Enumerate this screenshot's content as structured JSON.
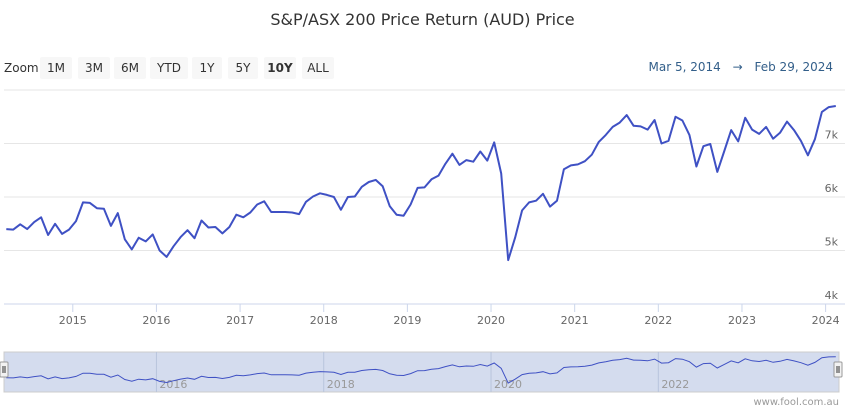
{
  "title": "S&P/ASX 200 Price Return (AUD) Price",
  "range_selector": {
    "label": "Zoom",
    "buttons": [
      "1M",
      "3M",
      "6M",
      "YTD",
      "1Y",
      "5Y",
      "10Y",
      "ALL"
    ],
    "selected": "10Y"
  },
  "date_range": {
    "from": "Mar 5, 2014",
    "arrow": "→",
    "to": "Feb 29, 2024"
  },
  "credit": "www.fool.com.au",
  "colors": {
    "line": "#3f51c4",
    "navigator_fill": "#ccd6eb",
    "grid": "#e6e6e6"
  },
  "chart_data": {
    "type": "line",
    "title": "S&P/ASX 200 Price Return (AUD) Price",
    "ylim": [
      4000,
      8000
    ],
    "yticks": [
      {
        "v": 4000,
        "label": "4k"
      },
      {
        "v": 5000,
        "label": "5k"
      },
      {
        "v": 6000,
        "label": "6k"
      },
      {
        "v": 7000,
        "label": "7k"
      }
    ],
    "xlim": [
      "2014-03-05",
      "2024-02-29"
    ],
    "xticks": [
      "2015",
      "2016",
      "2017",
      "2018",
      "2019",
      "2020",
      "2021",
      "2022",
      "2023",
      "2024"
    ],
    "navigator_ticks": [
      "2016",
      "2018",
      "2020",
      "2022"
    ],
    "grid": true,
    "series": [
      {
        "dates": [
          "2014-03",
          "2014-04",
          "2014-05",
          "2014-06",
          "2014-07",
          "2014-08",
          "2014-09",
          "2014-10",
          "2014-11",
          "2014-12",
          "2015-01",
          "2015-02",
          "2015-03",
          "2015-04",
          "2015-05",
          "2015-06",
          "2015-07",
          "2015-08",
          "2015-09",
          "2015-10",
          "2015-11",
          "2015-12",
          "2016-01",
          "2016-02",
          "2016-03",
          "2016-04",
          "2016-05",
          "2016-06",
          "2016-07",
          "2016-08",
          "2016-09",
          "2016-10",
          "2016-11",
          "2016-12",
          "2017-01",
          "2017-02",
          "2017-03",
          "2017-04",
          "2017-05",
          "2017-06",
          "2017-07",
          "2017-08",
          "2017-09",
          "2017-10",
          "2017-11",
          "2017-12",
          "2018-01",
          "2018-02",
          "2018-03",
          "2018-04",
          "2018-05",
          "2018-06",
          "2018-07",
          "2018-08",
          "2018-09",
          "2018-10",
          "2018-11",
          "2018-12",
          "2019-01",
          "2019-02",
          "2019-03",
          "2019-04",
          "2019-05",
          "2019-06",
          "2019-07",
          "2019-08",
          "2019-09",
          "2019-10",
          "2019-11",
          "2019-12",
          "2020-01",
          "2020-02",
          "2020-03",
          "2020-04",
          "2020-05",
          "2020-06",
          "2020-07",
          "2020-08",
          "2020-09",
          "2020-10",
          "2020-11",
          "2020-12",
          "2021-01",
          "2021-02",
          "2021-03",
          "2021-04",
          "2021-05",
          "2021-06",
          "2021-07",
          "2021-08",
          "2021-09",
          "2021-10",
          "2021-11",
          "2021-12",
          "2022-01",
          "2022-02",
          "2022-03",
          "2022-04",
          "2022-05",
          "2022-06",
          "2022-07",
          "2022-08",
          "2022-09",
          "2022-10",
          "2022-11",
          "2022-12",
          "2023-01",
          "2023-02",
          "2023-03",
          "2023-04",
          "2023-05",
          "2023-06",
          "2023-07",
          "2023-08",
          "2023-09",
          "2023-10",
          "2023-11",
          "2023-12",
          "2024-01",
          "2024-02"
        ],
        "values": [
          5400,
          5390,
          5490,
          5400,
          5530,
          5620,
          5290,
          5500,
          5310,
          5390,
          5550,
          5900,
          5890,
          5790,
          5780,
          5460,
          5700,
          5210,
          5020,
          5240,
          5170,
          5300,
          5000,
          4880,
          5080,
          5250,
          5380,
          5230,
          5560,
          5430,
          5440,
          5320,
          5440,
          5670,
          5620,
          5710,
          5860,
          5920,
          5720,
          5720,
          5720,
          5710,
          5680,
          5910,
          6010,
          6070,
          6040,
          6000,
          5760,
          6000,
          6010,
          6190,
          6280,
          6320,
          6200,
          5830,
          5670,
          5650,
          5860,
          6170,
          6180,
          6330,
          6400,
          6620,
          6810,
          6600,
          6690,
          6660,
          6850,
          6680,
          7020,
          6440,
          4820,
          5240,
          5750,
          5900,
          5930,
          6060,
          5820,
          5930,
          6520,
          6590,
          6610,
          6670,
          6790,
          7030,
          7160,
          7310,
          7390,
          7530,
          7330,
          7320,
          7260,
          7440,
          7000,
          7050,
          7500,
          7430,
          7160,
          6570,
          6950,
          6990,
          6470,
          6860,
          7250,
          7040,
          7480,
          7260,
          7180,
          7310,
          7090,
          7200,
          7410,
          7250,
          7050,
          6780,
          7080,
          7590,
          7680,
          7700
        ]
      }
    ]
  }
}
